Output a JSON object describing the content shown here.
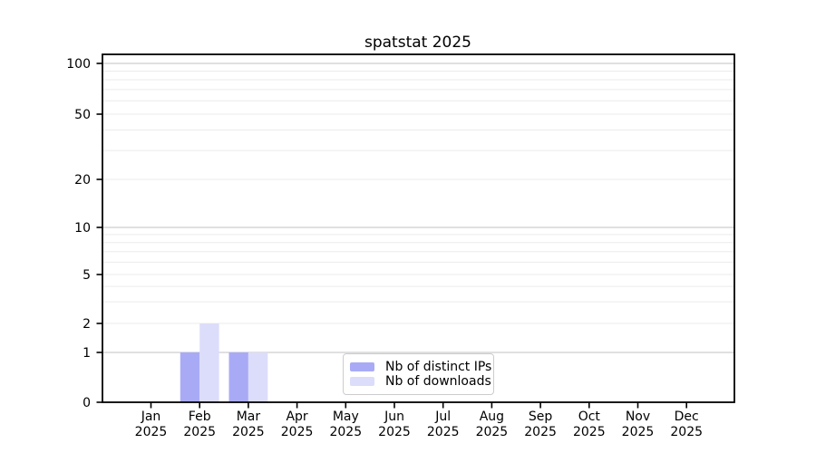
{
  "chart_data": {
    "type": "bar",
    "title": "spatstat 2025",
    "categories": [
      "Jan",
      "Feb",
      "Mar",
      "Apr",
      "May",
      "Jun",
      "Jul",
      "Aug",
      "Sep",
      "Oct",
      "Nov",
      "Dec"
    ],
    "category_sublabel": "2025",
    "series": [
      {
        "name": "Nb of distinct IPs",
        "color": "#a9aaf6",
        "values": [
          0,
          1,
          1,
          0,
          0,
          0,
          0,
          0,
          0,
          0,
          0,
          0
        ]
      },
      {
        "name": "Nb of downloads",
        "color": "#dcddfa",
        "values": [
          0,
          2,
          1,
          0,
          0,
          0,
          0,
          0,
          0,
          0,
          0,
          0
        ]
      }
    ],
    "xlabel": "",
    "ylabel": "",
    "y_axis": {
      "scale": "log1p",
      "ticks": [
        0,
        1,
        2,
        5,
        10,
        20,
        50,
        100
      ],
      "tick_labels": [
        "0",
        "1",
        "2",
        "5",
        "10",
        "20",
        "50",
        "100"
      ],
      "major_gridlines": [
        1,
        10,
        100
      ],
      "minor_gridlines": [
        2,
        3,
        4,
        5,
        6,
        7,
        8,
        9,
        20,
        30,
        40,
        50,
        60,
        70,
        80,
        90
      ],
      "range": [
        0,
        100
      ]
    },
    "legend": {
      "entries": [
        "Nb of distinct IPs",
        "Nb of downloads"
      ],
      "position": "lower center",
      "framed": true
    },
    "grid": true
  },
  "colors": {
    "bar_distinct_ips": "#a9aaf6",
    "bar_downloads": "#dcddfa",
    "major_grid": "#c2c2c2",
    "minor_grid": "#ebebeb",
    "axis": "#000000",
    "text": "#000000",
    "legend_border": "#cccccc",
    "background": "#ffffff"
  }
}
